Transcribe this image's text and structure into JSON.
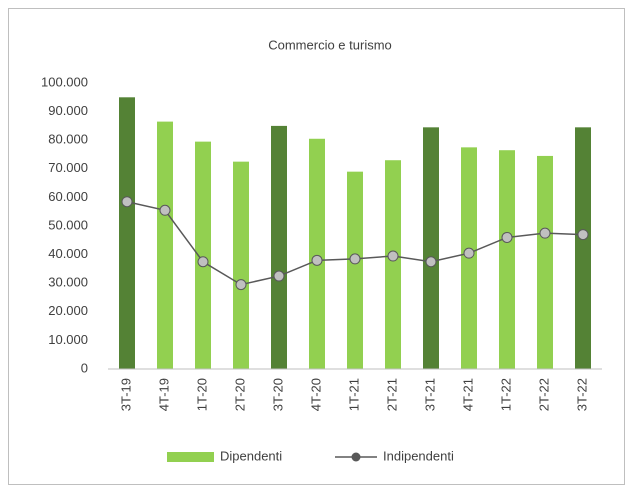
{
  "chart_data": {
    "type": "bar",
    "title": "Commercio e turismo",
    "categories": [
      "3T-19",
      "4T-19",
      "1T-20",
      "2T-20",
      "3T-20",
      "4T-20",
      "1T-21",
      "2T-21",
      "3T-21",
      "4T-21",
      "1T-22",
      "2T-22",
      "3T-22"
    ],
    "series": [
      {
        "name": "Dipendenti",
        "type": "bar",
        "color": "#92d050",
        "point_colors": [
          "#548235",
          "#92d050",
          "#92d050",
          "#92d050",
          "#548235",
          "#92d050",
          "#92d050",
          "#92d050",
          "#548235",
          "#92d050",
          "#92d050",
          "#92d050",
          "#548235"
        ],
        "values": [
          95000,
          86500,
          79500,
          72500,
          85000,
          80500,
          69000,
          73000,
          84500,
          77500,
          76500,
          74500,
          84500
        ]
      },
      {
        "name": "Indipendenti",
        "type": "line",
        "color": "#595959",
        "marker_color": "#c0c0c0",
        "values": [
          58500,
          55500,
          37500,
          29500,
          32500,
          38000,
          38500,
          39500,
          37500,
          40500,
          46000,
          47500,
          47000
        ]
      }
    ],
    "ylim": [
      0,
      100000
    ],
    "yticks": [
      0,
      {
        "value": 10000,
        "label": "10.000"
      },
      {
        "value": 20000,
        "label": "20.000"
      },
      {
        "value": 30000,
        "label": "30.000"
      },
      {
        "value": 40000,
        "label": "40.000"
      },
      {
        "value": 50000,
        "label": "50.000"
      },
      {
        "value": 60000,
        "label": "60.000"
      },
      {
        "value": 70000,
        "label": "70.000"
      },
      {
        "value": 80000,
        "label": "80.000"
      },
      {
        "value": 90000,
        "label": "90.000"
      },
      {
        "value": 100000,
        "label": "100.000"
      }
    ],
    "grid": false,
    "legend": "bottom"
  }
}
